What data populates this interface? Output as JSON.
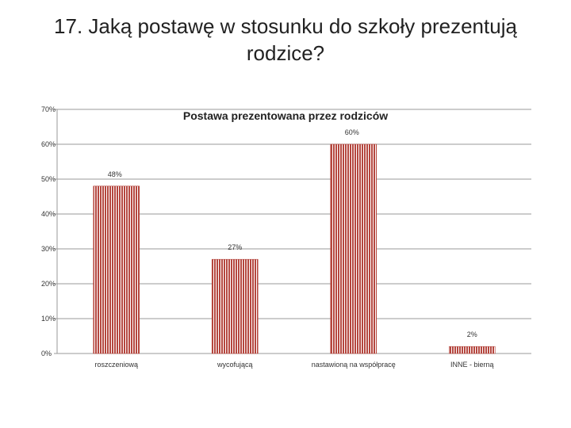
{
  "slide": {
    "title": "17. Jaką postawę w stosunku do szkoły prezentują rodzice?"
  },
  "colors": {
    "bar": "#b5473f",
    "bar_stripe": "#ffffff",
    "grid": "#9a9a9a",
    "axis": "#9a9a9a"
  },
  "chart_data": {
    "type": "bar",
    "title": "Postawa prezentowana przez rodziców",
    "categories": [
      "roszczeniową",
      "wycofującą",
      "nastawioną na współpracę",
      "INNE - bierną"
    ],
    "values": [
      48,
      27,
      60,
      2
    ],
    "data_labels": [
      "48%",
      "27%",
      "60%",
      "2%"
    ],
    "ylim": [
      0,
      70
    ],
    "yticks": [
      0,
      10,
      20,
      30,
      40,
      50,
      60,
      70
    ],
    "ytick_labels": [
      "0%",
      "10%",
      "20%",
      "30%",
      "40%",
      "50%",
      "60%",
      "70%"
    ],
    "xlabel": "",
    "ylabel": "",
    "grid": true,
    "legend": "none"
  }
}
